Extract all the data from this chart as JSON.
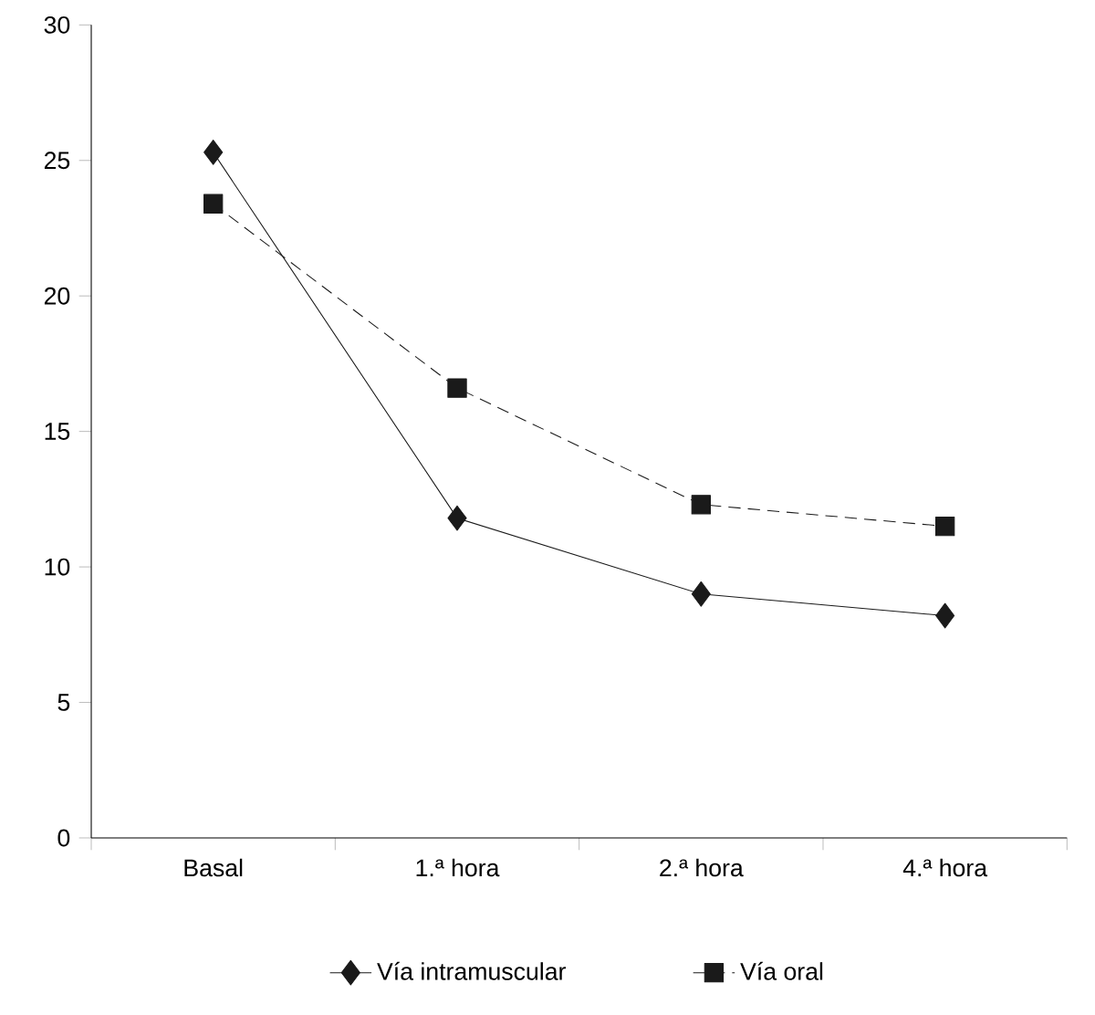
{
  "chart_data": {
    "type": "line",
    "categories": [
      "Basal",
      "1.ª hora",
      "2.ª hora",
      "4.ª hora"
    ],
    "series": [
      {
        "name": "Vía intramuscular",
        "color": "#1a1a1a",
        "values": [
          25.3,
          11.8,
          9.0,
          8.2
        ],
        "marker": "diamond",
        "line_style": "solid"
      },
      {
        "name": "Vía oral",
        "color": "#1a1a1a",
        "values": [
          23.4,
          16.6,
          12.3,
          11.5
        ],
        "marker": "square",
        "line_style": "dashed"
      }
    ],
    "ylim": [
      0,
      30
    ],
    "yticks": [
      0,
      5,
      10,
      15,
      20,
      25,
      30
    ],
    "grid": false,
    "legend": "bottom"
  }
}
